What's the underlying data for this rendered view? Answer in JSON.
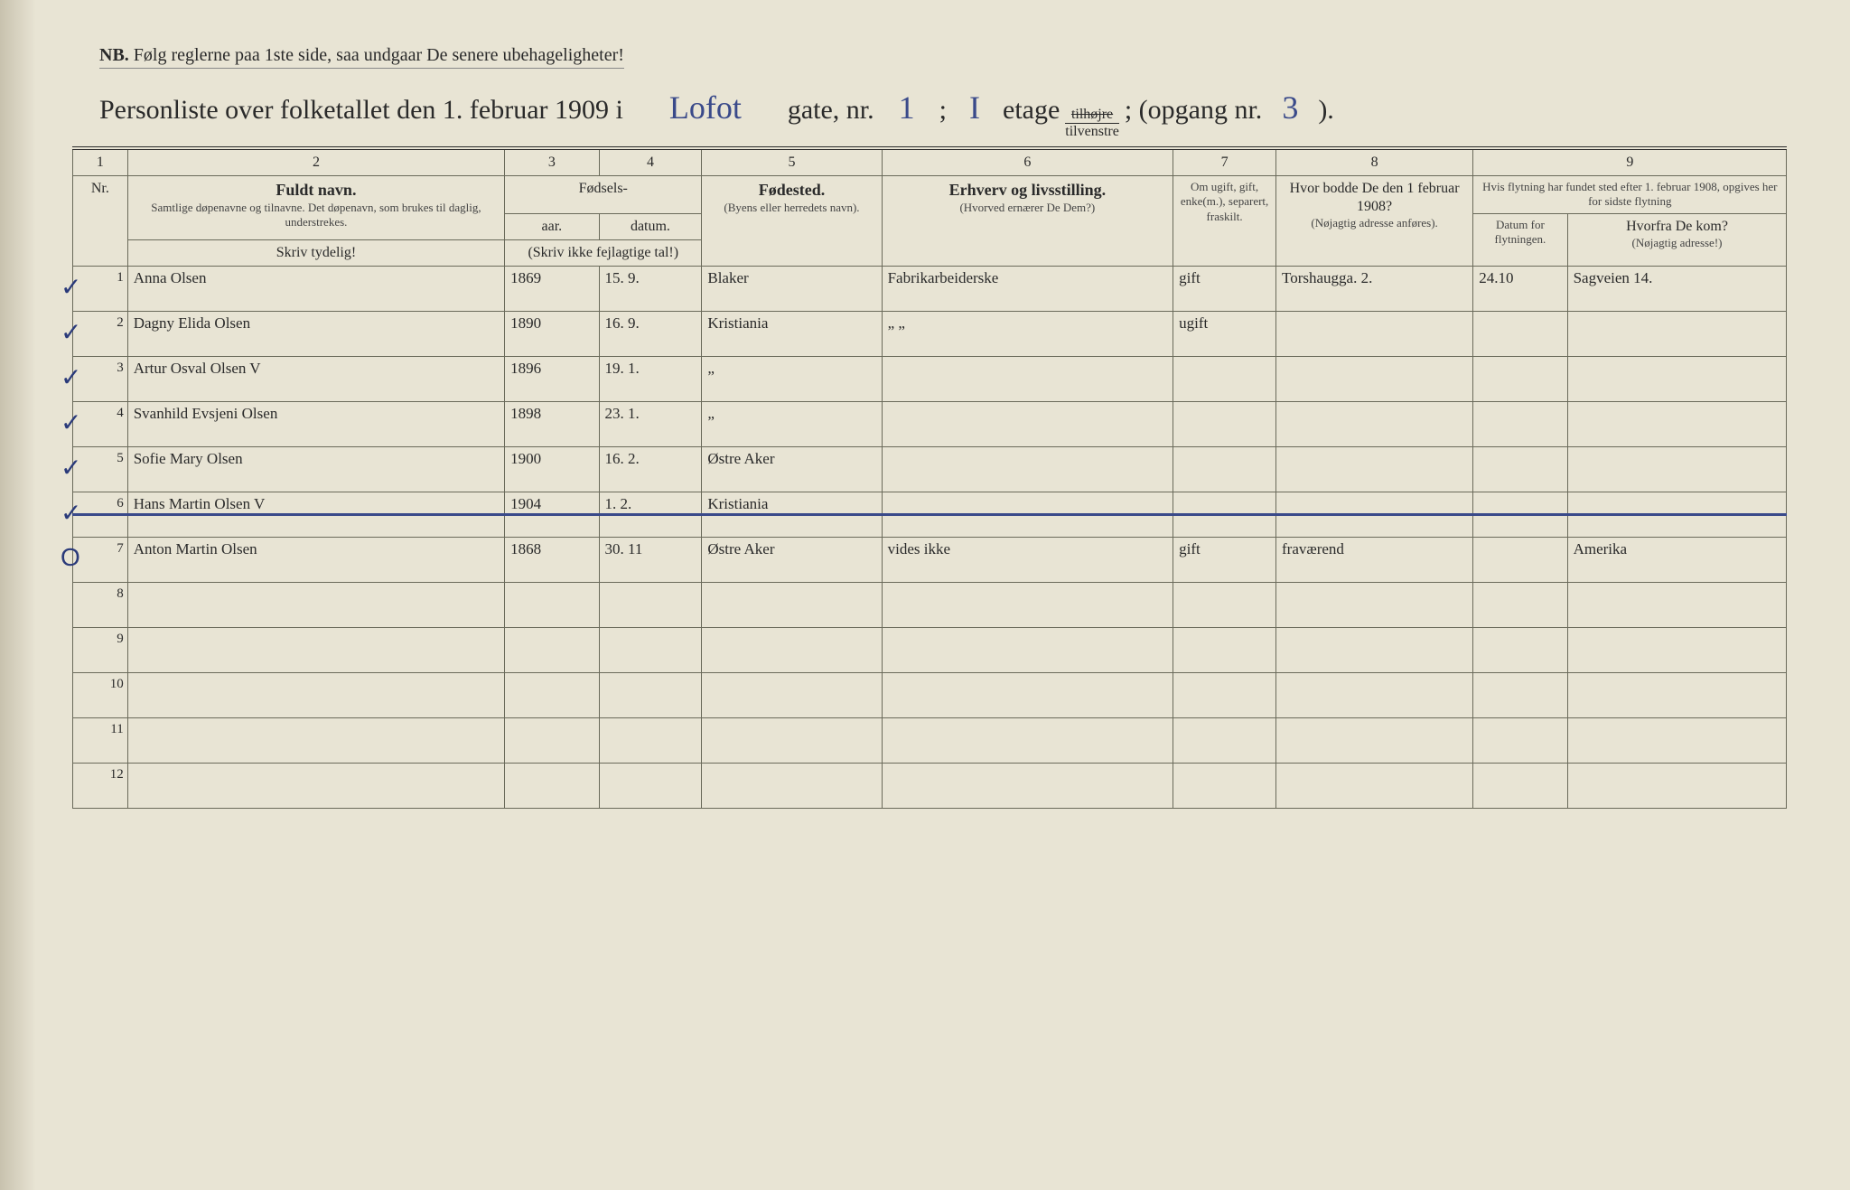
{
  "nb": {
    "prefix": "NB.",
    "text": "Følg reglerne paa 1ste side, saa undgaar De senere ubehageligheter!"
  },
  "title": {
    "lead": "Personliste over folketallet den 1. februar 1909 i",
    "street": "Lofot",
    "gate_nr_label": "gate, nr.",
    "gate_nr": "1",
    "floor": "I",
    "etage": "etage",
    "frac_top": "tilhøjre",
    "frac_bot": "tilvenstre",
    "opg_label": "; (opgang nr.",
    "opg": "3",
    "close": ")."
  },
  "cols": {
    "n1": "1",
    "n2": "2",
    "n3": "3",
    "n4": "4",
    "n5": "5",
    "n6": "6",
    "n7": "7",
    "n8": "8",
    "n9": "9",
    "fuldt": "Fuldt navn.",
    "fuldt_sub": "Samtlige døpenavne og tilnavne. Det døpenavn, som brukes til daglig, understrekes.",
    "fodsels": "Fødsels-",
    "aar": "aar.",
    "datum": "datum.",
    "tal_note": "(Skriv ikke fejlagtige tal!)",
    "fodested": "Fødested.",
    "fodested_sub": "(Byens eller herredets navn).",
    "erhverv": "Erhverv og livsstilling.",
    "erhverv_sub": "(Hvorved ernærer De Dem?)",
    "civil": "Om ugift, gift, enke(m.), separert, fraskilt.",
    "prev": "Hvor bodde De den 1 februar 1908?",
    "prev_sub": "(Nøjagtig adresse anføres).",
    "flyt": "Hvis flytning har fundet sted efter 1. februar 1908, opgives her for sidste flytning",
    "flyt_dt": "Datum for flytningen.",
    "flyt_fra": "Hvorfra De kom?",
    "flyt_fra_sub": "(Nøjagtig adresse!)",
    "skriv": "Skriv tydelig!"
  },
  "rows": [
    {
      "nr": "1",
      "tick": "✓",
      "name": "Anna Olsen",
      "yr": "1869",
      "dt": "15. 9.",
      "bp": "Blaker",
      "occ": "Fabrikarbeiderske",
      "ms": "gift",
      "prev": "Torshaugga. 2.",
      "mvd": "24.10",
      "from": "Sagveien 14."
    },
    {
      "nr": "2",
      "tick": "✓",
      "name": "Dagny Elida Olsen",
      "yr": "1890",
      "dt": "16. 9.",
      "bp": "Kristiania",
      "occ": "„    „",
      "ms": "ugift",
      "prev": "",
      "mvd": "",
      "from": ""
    },
    {
      "nr": "3",
      "tick": "✓",
      "name": "Artur Osval Olsen   V",
      "yr": "1896",
      "dt": "19. 1.",
      "bp": "„",
      "occ": "",
      "ms": "",
      "prev": "",
      "mvd": "",
      "from": ""
    },
    {
      "nr": "4",
      "tick": "✓",
      "name": "Svanhild Evsjeni Olsen",
      "yr": "1898",
      "dt": "23. 1.",
      "bp": "„",
      "occ": "",
      "ms": "",
      "prev": "",
      "mvd": "",
      "from": ""
    },
    {
      "nr": "5",
      "tick": "✓",
      "name": "Sofie Mary Olsen",
      "yr": "1900",
      "dt": "16. 2.",
      "bp": "Østre Aker",
      "occ": "",
      "ms": "",
      "prev": "",
      "mvd": "",
      "from": ""
    },
    {
      "nr": "6",
      "tick": "✓",
      "name": "Hans Martin Olsen V",
      "yr": "1904",
      "dt": "1. 2.",
      "bp": "Kristiania",
      "occ": "",
      "ms": "",
      "prev": "",
      "mvd": "",
      "from": ""
    },
    {
      "nr": "7",
      "tick": "O",
      "name": "Anton Martin Olsen",
      "yr": "1868",
      "dt": "30. 11",
      "bp": "Østre Aker",
      "occ": "vides ikke",
      "ms": "gift",
      "prev": "fraværend",
      "mvd": "",
      "from": "Amerika",
      "struck": true
    },
    {
      "nr": "8"
    },
    {
      "nr": "9"
    },
    {
      "nr": "10"
    },
    {
      "nr": "11"
    },
    {
      "nr": "12"
    }
  ],
  "colors": {
    "paper": "#e8e4d4",
    "ink_print": "#2a2a2a",
    "ink_hand": "#3a4a8a",
    "rule": "#6a6a5a"
  }
}
